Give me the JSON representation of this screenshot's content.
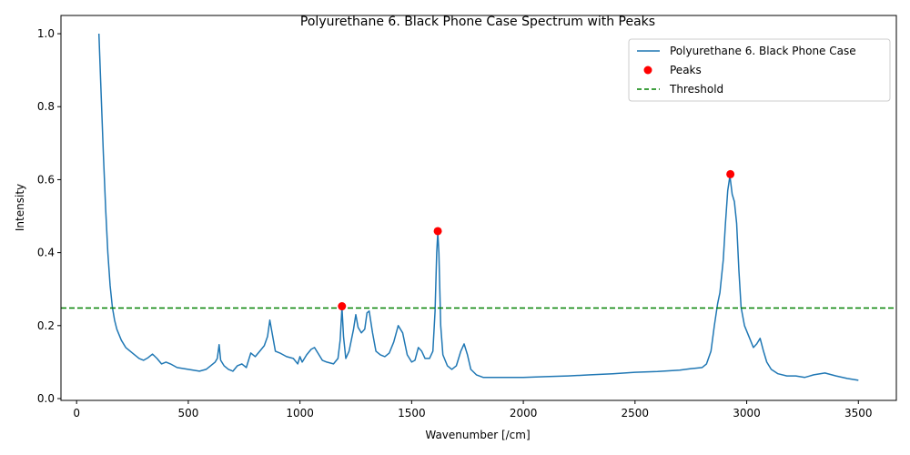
{
  "chart_data": {
    "type": "line",
    "title": "Polyurethane 6. Black Phone Case Spectrum with Peaks",
    "xlabel": "Wavenumber [/cm]",
    "ylabel": "Intensity",
    "xlim": [
      -70,
      3670
    ],
    "ylim": [
      -0.005,
      1.05
    ],
    "xticks": [
      0,
      500,
      1000,
      1500,
      2000,
      2500,
      3000,
      3500
    ],
    "yticks": [
      0.0,
      0.2,
      0.4,
      0.6,
      0.8,
      1.0
    ],
    "xtick_labels": [
      "0",
      "500",
      "1000",
      "1500",
      "2000",
      "2500",
      "3000",
      "3500"
    ],
    "ytick_labels": [
      "0.0",
      "0.2",
      "0.4",
      "0.6",
      "0.8",
      "1.0"
    ],
    "grid": false,
    "legend_position": "top-right",
    "series": [
      {
        "name": "Polyurethane 6. Black Phone Case",
        "kind": "line",
        "color": "#1f77b4",
        "points": [
          [
            100,
            1.0
          ],
          [
            110,
            0.83
          ],
          [
            120,
            0.67
          ],
          [
            130,
            0.52
          ],
          [
            140,
            0.4
          ],
          [
            150,
            0.31
          ],
          [
            160,
            0.25
          ],
          [
            170,
            0.215
          ],
          [
            180,
            0.19
          ],
          [
            200,
            0.16
          ],
          [
            220,
            0.14
          ],
          [
            250,
            0.125
          ],
          [
            280,
            0.11
          ],
          [
            300,
            0.105
          ],
          [
            320,
            0.112
          ],
          [
            340,
            0.122
          ],
          [
            360,
            0.11
          ],
          [
            380,
            0.095
          ],
          [
            400,
            0.1
          ],
          [
            420,
            0.095
          ],
          [
            450,
            0.085
          ],
          [
            500,
            0.08
          ],
          [
            550,
            0.075
          ],
          [
            580,
            0.08
          ],
          [
            600,
            0.09
          ],
          [
            620,
            0.1
          ],
          [
            630,
            0.11
          ],
          [
            638,
            0.148
          ],
          [
            645,
            0.105
          ],
          [
            660,
            0.09
          ],
          [
            680,
            0.08
          ],
          [
            700,
            0.075
          ],
          [
            720,
            0.09
          ],
          [
            740,
            0.095
          ],
          [
            760,
            0.085
          ],
          [
            780,
            0.125
          ],
          [
            800,
            0.115
          ],
          [
            820,
            0.13
          ],
          [
            840,
            0.145
          ],
          [
            855,
            0.17
          ],
          [
            865,
            0.215
          ],
          [
            875,
            0.18
          ],
          [
            890,
            0.13
          ],
          [
            910,
            0.125
          ],
          [
            940,
            0.115
          ],
          [
            970,
            0.11
          ],
          [
            990,
            0.095
          ],
          [
            1000,
            0.115
          ],
          [
            1010,
            0.1
          ],
          [
            1030,
            0.12
          ],
          [
            1050,
            0.135
          ],
          [
            1065,
            0.14
          ],
          [
            1080,
            0.125
          ],
          [
            1100,
            0.105
          ],
          [
            1120,
            0.1
          ],
          [
            1150,
            0.095
          ],
          [
            1170,
            0.11
          ],
          [
            1180,
            0.16
          ],
          [
            1188,
            0.25
          ],
          [
            1195,
            0.17
          ],
          [
            1205,
            0.11
          ],
          [
            1220,
            0.13
          ],
          [
            1240,
            0.19
          ],
          [
            1250,
            0.23
          ],
          [
            1260,
            0.195
          ],
          [
            1275,
            0.18
          ],
          [
            1290,
            0.19
          ],
          [
            1300,
            0.235
          ],
          [
            1310,
            0.24
          ],
          [
            1325,
            0.18
          ],
          [
            1340,
            0.13
          ],
          [
            1360,
            0.12
          ],
          [
            1380,
            0.115
          ],
          [
            1400,
            0.125
          ],
          [
            1420,
            0.155
          ],
          [
            1440,
            0.2
          ],
          [
            1460,
            0.18
          ],
          [
            1480,
            0.12
          ],
          [
            1500,
            0.1
          ],
          [
            1515,
            0.105
          ],
          [
            1530,
            0.14
          ],
          [
            1545,
            0.13
          ],
          [
            1560,
            0.11
          ],
          [
            1580,
            0.11
          ],
          [
            1595,
            0.13
          ],
          [
            1605,
            0.24
          ],
          [
            1612,
            0.4
          ],
          [
            1617,
            0.455
          ],
          [
            1622,
            0.4
          ],
          [
            1630,
            0.2
          ],
          [
            1640,
            0.12
          ],
          [
            1660,
            0.09
          ],
          [
            1680,
            0.08
          ],
          [
            1700,
            0.09
          ],
          [
            1720,
            0.13
          ],
          [
            1735,
            0.15
          ],
          [
            1750,
            0.12
          ],
          [
            1765,
            0.08
          ],
          [
            1790,
            0.065
          ],
          [
            1820,
            0.058
          ],
          [
            1900,
            0.058
          ],
          [
            2000,
            0.058
          ],
          [
            2100,
            0.06
          ],
          [
            2200,
            0.062
          ],
          [
            2300,
            0.065
          ],
          [
            2400,
            0.068
          ],
          [
            2500,
            0.072
          ],
          [
            2600,
            0.074
          ],
          [
            2700,
            0.078
          ],
          [
            2750,
            0.082
          ],
          [
            2800,
            0.085
          ],
          [
            2820,
            0.095
          ],
          [
            2840,
            0.13
          ],
          [
            2855,
            0.2
          ],
          [
            2870,
            0.26
          ],
          [
            2880,
            0.29
          ],
          [
            2895,
            0.38
          ],
          [
            2905,
            0.48
          ],
          [
            2915,
            0.57
          ],
          [
            2925,
            0.61
          ],
          [
            2935,
            0.56
          ],
          [
            2945,
            0.54
          ],
          [
            2955,
            0.48
          ],
          [
            2965,
            0.35
          ],
          [
            2975,
            0.25
          ],
          [
            2990,
            0.2
          ],
          [
            3010,
            0.17
          ],
          [
            3030,
            0.14
          ],
          [
            3045,
            0.15
          ],
          [
            3060,
            0.165
          ],
          [
            3075,
            0.13
          ],
          [
            3090,
            0.1
          ],
          [
            3110,
            0.08
          ],
          [
            3140,
            0.068
          ],
          [
            3180,
            0.062
          ],
          [
            3220,
            0.062
          ],
          [
            3260,
            0.058
          ],
          [
            3300,
            0.065
          ],
          [
            3350,
            0.07
          ],
          [
            3400,
            0.062
          ],
          [
            3450,
            0.055
          ],
          [
            3500,
            0.05
          ]
        ]
      },
      {
        "name": "Peaks",
        "kind": "scatter",
        "color": "#ff0000",
        "points": [
          [
            1188,
            0.253
          ],
          [
            1617,
            0.459
          ],
          [
            2927,
            0.615
          ]
        ]
      },
      {
        "name": "Threshold",
        "kind": "hline",
        "color": "#008000",
        "y": 0.248
      }
    ]
  }
}
